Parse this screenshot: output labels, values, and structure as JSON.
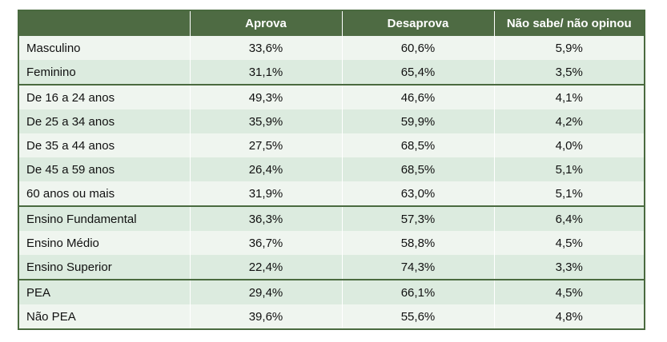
{
  "table": {
    "headers": [
      "",
      "Aprova",
      "Desaprova",
      "Não sabe/ não opinou"
    ],
    "rows": [
      {
        "label": "Masculino",
        "aprova": "33,6%",
        "desaprova": "60,6%",
        "nao_sabe": "5,9%"
      },
      {
        "label": "Feminino",
        "aprova": "31,1%",
        "desaprova": "65,4%",
        "nao_sabe": "3,5%"
      },
      {
        "label": "De 16 a 24 anos",
        "aprova": "49,3%",
        "desaprova": "46,6%",
        "nao_sabe": "4,1%"
      },
      {
        "label": "De 25 a 34 anos",
        "aprova": "35,9%",
        "desaprova": "59,9%",
        "nao_sabe": "4,2%"
      },
      {
        "label": "De 35 a 44 anos",
        "aprova": "27,5%",
        "desaprova": "68,5%",
        "nao_sabe": "4,0%"
      },
      {
        "label": "De 45 a 59 anos",
        "aprova": "26,4%",
        "desaprova": "68,5%",
        "nao_sabe": "5,1%"
      },
      {
        "label": "60 anos ou mais",
        "aprova": "31,9%",
        "desaprova": "63,0%",
        "nao_sabe": "5,1%"
      },
      {
        "label": "Ensino Fundamental",
        "aprova": "36,3%",
        "desaprova": "57,3%",
        "nao_sabe": "6,4%"
      },
      {
        "label": "Ensino Médio",
        "aprova": "36,7%",
        "desaprova": "58,8%",
        "nao_sabe": "4,5%"
      },
      {
        "label": "Ensino Superior",
        "aprova": "22,4%",
        "desaprova": "74,3%",
        "nao_sabe": "3,3%"
      },
      {
        "label": "PEA",
        "aprova": "29,4%",
        "desaprova": "66,1%",
        "nao_sabe": "4,5%"
      },
      {
        "label": "Não PEA",
        "aprova": "39,6%",
        "desaprova": "55,6%",
        "nao_sabe": "4,8%"
      }
    ]
  },
  "colors": {
    "header_bg": "#4e6b43",
    "header_text": "#ffffff",
    "row_light": "#eff5ef",
    "row_dark": "#dcebdf",
    "border": "#4a6a3f"
  }
}
